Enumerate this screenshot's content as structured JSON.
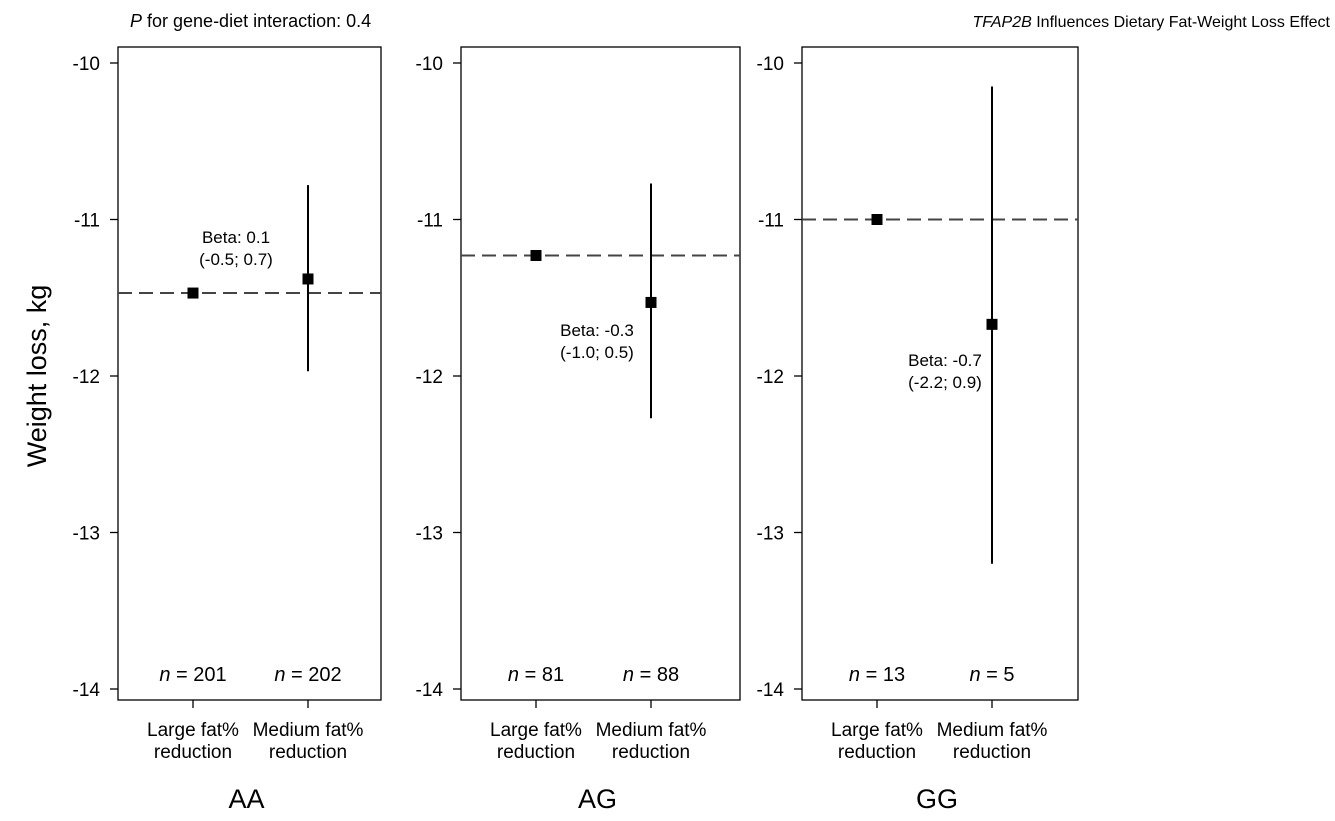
{
  "header": {
    "note_italic": "P",
    "note_rest": " for gene-diet interaction: 0.4",
    "title_italic": "TFAP2B",
    "title_rest": " Influences Dietary Fat-Weight Loss Effect"
  },
  "chart_data": {
    "type": "scatter",
    "ylabel": "Weight loss, kg",
    "ylim": [
      -14,
      -10
    ],
    "yticks": [
      "-10",
      "-11",
      "-12",
      "-13",
      "-14"
    ],
    "categories": [
      "Large fat%\nreduction",
      "Medium fat%\nreduction"
    ],
    "panels": [
      {
        "label": "AA",
        "reference": -11.47,
        "points": [
          {
            "category": "Large fat%\nreduction",
            "value": -11.47,
            "n": "201"
          },
          {
            "category": "Medium fat%\nreduction",
            "value": -11.38,
            "lower": -11.97,
            "upper": -10.78,
            "n": "202"
          }
        ],
        "beta": {
          "line1": "Beta: 0.1",
          "line2": "(-0.5; 0.7)"
        }
      },
      {
        "label": "AG",
        "reference": -11.23,
        "points": [
          {
            "category": "Large fat%\nreduction",
            "value": -11.23,
            "n": "81"
          },
          {
            "category": "Medium fat%\nreduction",
            "value": -11.53,
            "lower": -12.27,
            "upper": -10.77,
            "n": "88"
          }
        ],
        "beta": {
          "line1": "Beta: -0.3",
          "line2": "(-1.0; 0.5)"
        }
      },
      {
        "label": "GG",
        "reference": -11.0,
        "points": [
          {
            "category": "Large fat%\nreduction",
            "value": -11.0,
            "n": "13"
          },
          {
            "category": "Medium fat%\nreduction",
            "value": -11.67,
            "lower": -13.2,
            "upper": -10.15,
            "n": "5"
          }
        ],
        "beta": {
          "line1": "Beta: -0.7",
          "line2": "(-2.2; 0.9)"
        }
      }
    ],
    "n_prefix": "n",
    "n_sep": " = "
  }
}
